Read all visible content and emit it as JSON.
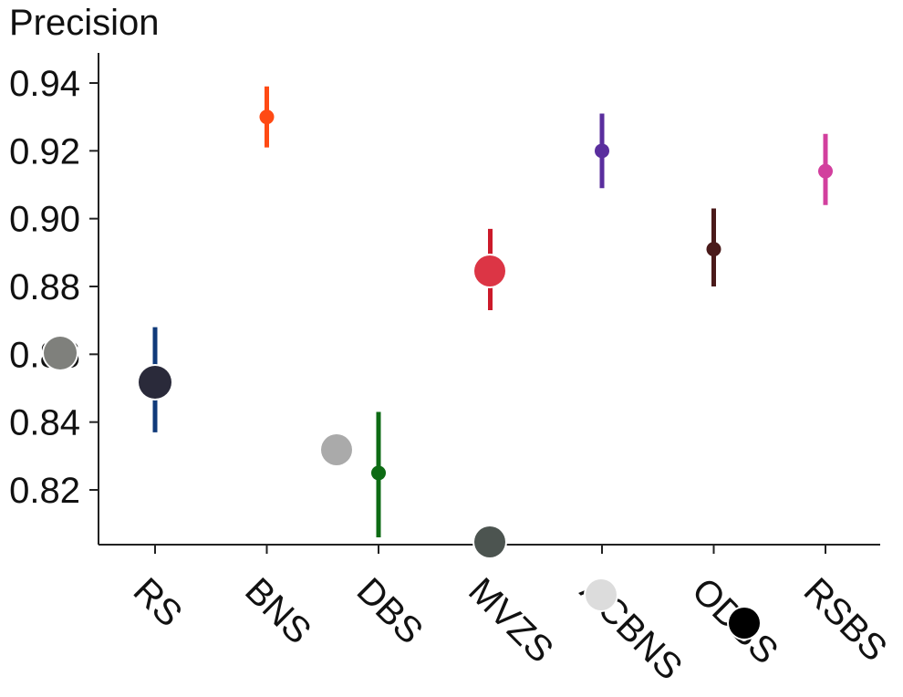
{
  "chart_data": {
    "type": "scatter",
    "title": "",
    "xlabel": "",
    "ylabel": "Precision",
    "categories": [
      "RS",
      "BNS",
      "DBS",
      "MVZS",
      "ACBNS",
      "ODBS",
      "RSBS"
    ],
    "values": [
      0.852,
      0.93,
      0.825,
      0.885,
      0.92,
      0.891,
      0.914
    ],
    "error_low": [
      0.837,
      0.921,
      0.806,
      0.873,
      0.909,
      0.88,
      0.904
    ],
    "error_high": [
      0.868,
      0.939,
      0.843,
      0.897,
      0.931,
      0.903,
      0.925
    ],
    "colors": [
      "#0f3a7a",
      "#ff4a14",
      "#0d6b14",
      "#cc1a2a",
      "#5a2e9e",
      "#4a1a1a",
      "#d23f9e"
    ],
    "ylim": [
      0.805,
      0.95
    ],
    "yticks": [
      "0.82",
      "0.84",
      "0.86",
      "0.88",
      "0.90",
      "0.92",
      "0.94"
    ],
    "ytick_values": [
      0.82,
      0.84,
      0.86,
      0.88,
      0.9,
      0.92,
      0.94
    ],
    "grid": false,
    "legend": "none",
    "overlay_markers": [
      {
        "color": "#7f807c"
      },
      {
        "color": "#2a2a3a"
      },
      {
        "color": "#aaaaaa"
      },
      {
        "color": "#dc3545"
      },
      {
        "color": "#4c5450"
      },
      {
        "color": "#dcdcdc"
      },
      {
        "color": "#000000"
      }
    ]
  }
}
